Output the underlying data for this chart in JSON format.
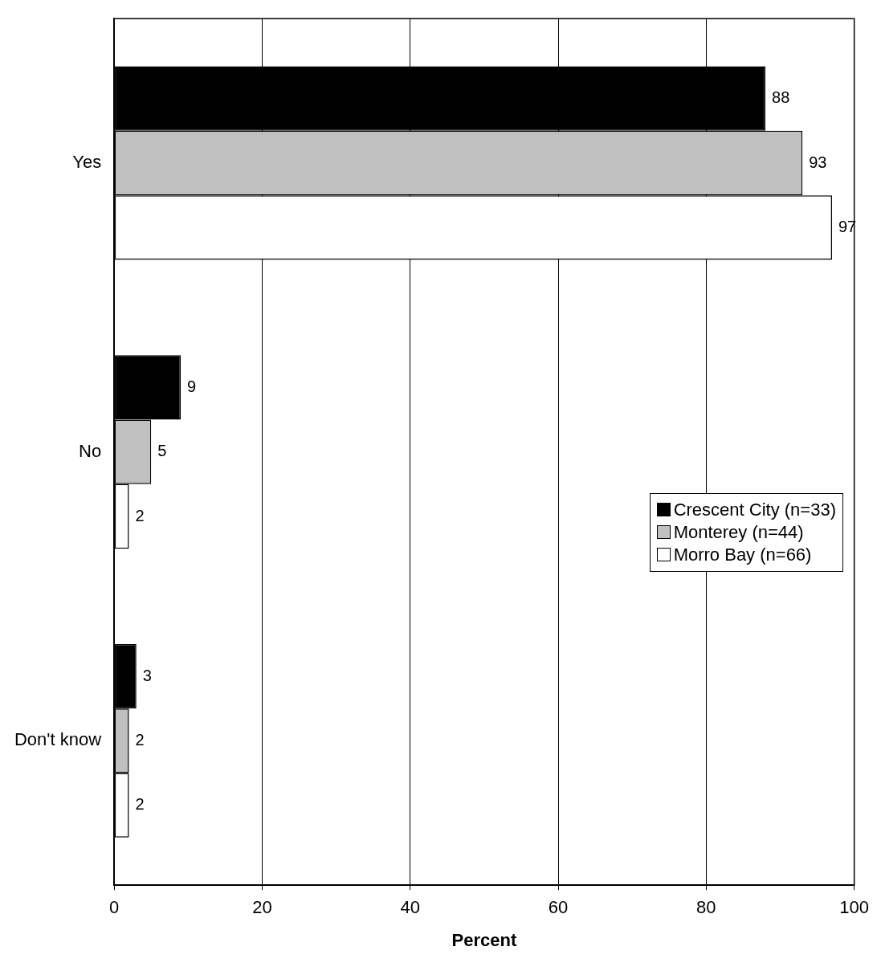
{
  "chart_data": {
    "type": "bar",
    "orientation": "horizontal",
    "xlabel": "Percent",
    "categories": [
      "Yes",
      "No",
      "Don't know"
    ],
    "series": [
      {
        "name": "Crescent City (n=33)",
        "color": "#000000",
        "values": [
          88,
          9,
          3
        ]
      },
      {
        "name": "Monterey (n=44)",
        "color": "#c0c0c0",
        "values": [
          93,
          5,
          2
        ]
      },
      {
        "name": "Morro Bay (n=66)",
        "color": "#ffffff",
        "values": [
          97,
          2,
          2
        ]
      }
    ],
    "xlim": [
      0,
      100
    ],
    "xticks": [
      0,
      20,
      40,
      60,
      80,
      100
    ],
    "grid": "x",
    "legend": "right",
    "data_labels": true
  }
}
